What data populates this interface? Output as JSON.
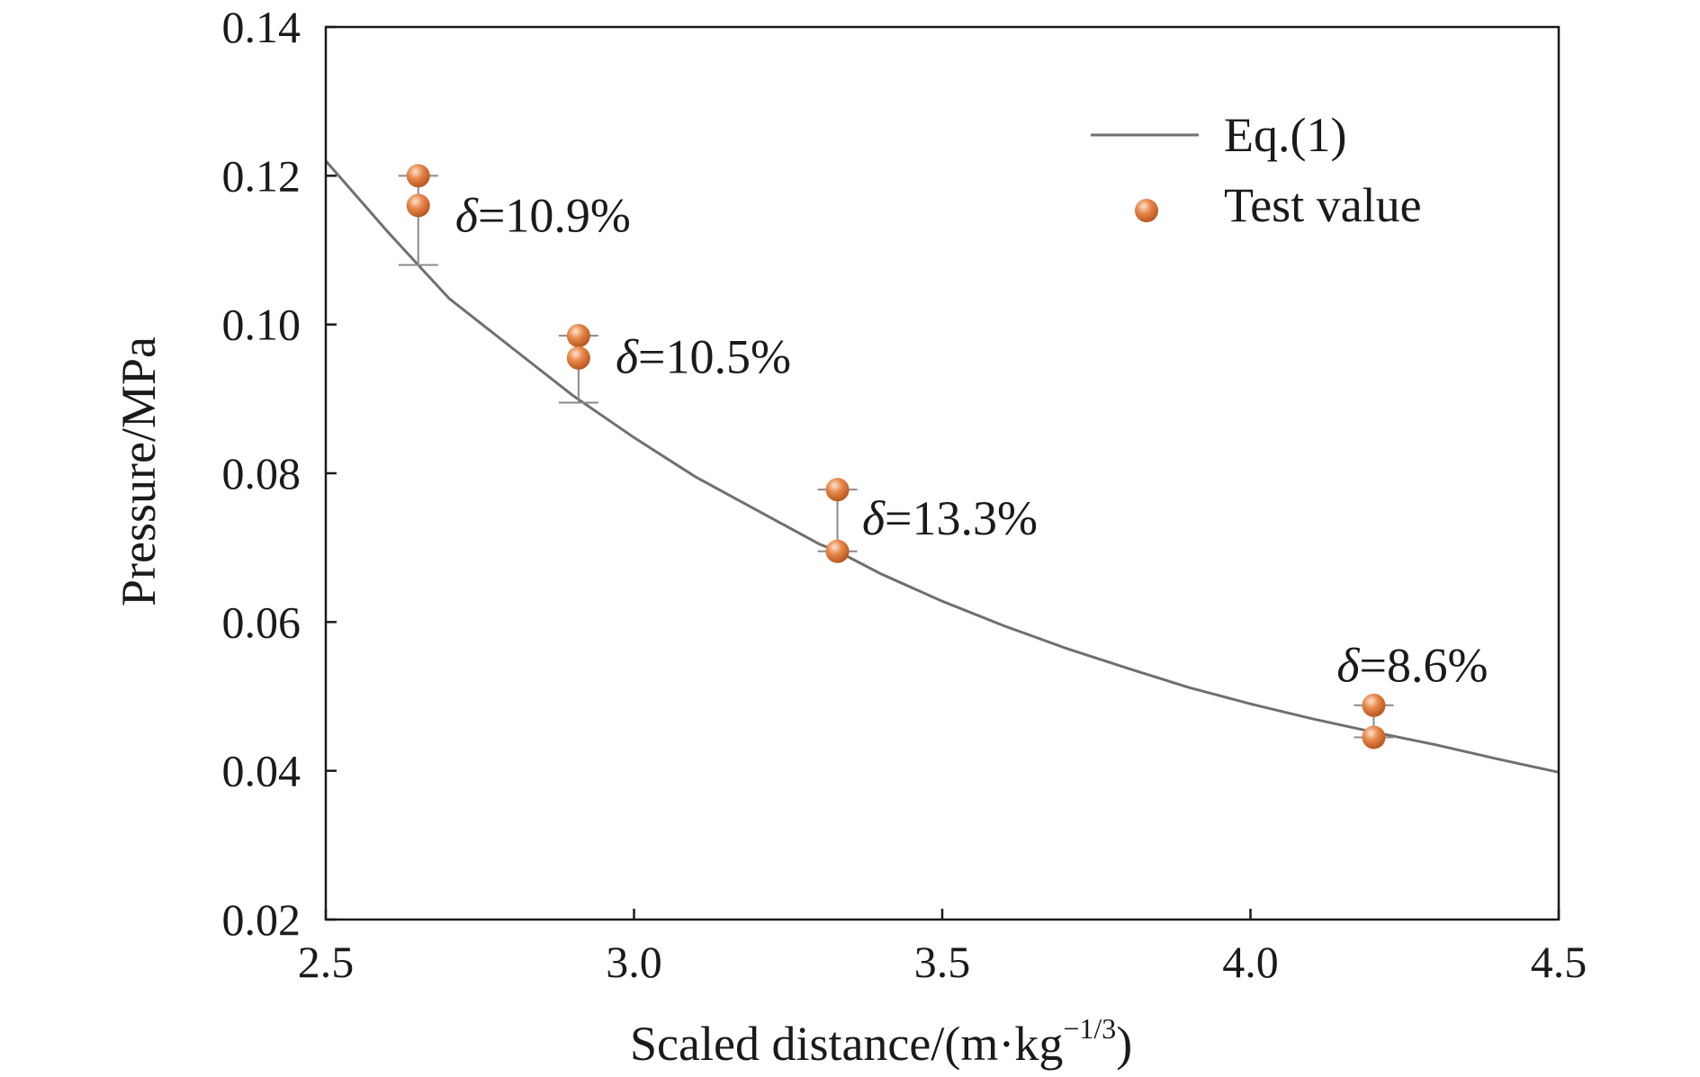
{
  "chart_data": {
    "type": "scatter",
    "xlabel": "Scaled distance/(m·kg",
    "xlabel_sup": "−1/3",
    "xlabel_end": ")",
    "ylabel": "Pressure/MPa",
    "xlim": [
      2.5,
      4.5
    ],
    "ylim": [
      0.02,
      0.14
    ],
    "x_ticks": [
      "2.5",
      "3.0",
      "3.5",
      "4.0",
      "4.5"
    ],
    "y_ticks": [
      "0.02",
      "0.04",
      "0.06",
      "0.08",
      "0.10",
      "0.12",
      "0.14"
    ],
    "grid": false,
    "legend_position": "top-right",
    "legend": [
      {
        "label": "Eq.(1)",
        "marker": "line"
      },
      {
        "label": "Test value",
        "marker": "sphere"
      }
    ],
    "series": [
      {
        "name": "Eq.(1)",
        "kind": "line",
        "color": "#6f6f6f",
        "x": [
          2.5,
          2.6,
          2.65,
          2.7,
          2.8,
          2.9,
          3.0,
          3.1,
          3.2,
          3.3,
          3.33,
          3.4,
          3.5,
          3.6,
          3.7,
          3.8,
          3.9,
          4.0,
          4.1,
          4.2,
          4.3,
          4.4,
          4.5
        ],
        "y": [
          0.122,
          0.1125,
          0.108,
          0.1035,
          0.097,
          0.0905,
          0.0848,
          0.0795,
          0.075,
          0.0705,
          0.0695,
          0.0665,
          0.0628,
          0.0595,
          0.0565,
          0.0538,
          0.0512,
          0.049,
          0.047,
          0.0452,
          0.0435,
          0.0416,
          0.0398
        ]
      },
      {
        "name": "Test value",
        "kind": "points",
        "color": "#e07b39",
        "points": [
          {
            "x": 2.65,
            "y": 0.12
          },
          {
            "x": 2.65,
            "y": 0.116
          },
          {
            "x": 2.91,
            "y": 0.0985
          },
          {
            "x": 2.91,
            "y": 0.0955
          },
          {
            "x": 3.33,
            "y": 0.0778
          },
          {
            "x": 3.33,
            "y": 0.0695
          },
          {
            "x": 4.2,
            "y": 0.0488
          },
          {
            "x": 4.2,
            "y": 0.0445
          }
        ]
      }
    ],
    "error_bars": [
      {
        "x": 2.65,
        "y_low": 0.108,
        "y_high": 0.12,
        "label_prefix": "δ",
        "label_value": "=10.9%",
        "label_x": 2.71,
        "label_y": 0.1125
      },
      {
        "x": 2.91,
        "y_low": 0.0895,
        "y_high": 0.0985,
        "label_prefix": "δ",
        "label_value": "=10.5%",
        "label_x": 2.97,
        "label_y": 0.0935
      },
      {
        "x": 3.33,
        "y_low": 0.0695,
        "y_high": 0.0778,
        "label_prefix": "δ",
        "label_value": "=13.3%",
        "label_x": 3.37,
        "label_y": 0.0718
      },
      {
        "x": 4.2,
        "y_low": 0.0445,
        "y_high": 0.0488,
        "label_prefix": "δ",
        "label_value": "=8.6%",
        "label_x": 4.14,
        "label_y": 0.052
      }
    ]
  }
}
